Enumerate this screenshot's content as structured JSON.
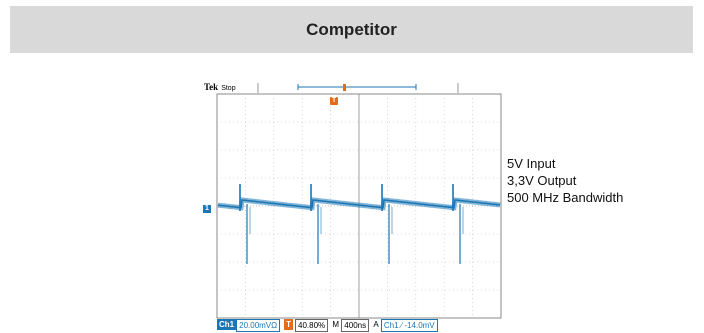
{
  "header": {
    "title": "Competitor"
  },
  "scope": {
    "brand": "Tek",
    "mode": "Stop",
    "trigger_marker": "T",
    "channel_marker": "1",
    "status": {
      "channel": "Ch1",
      "volts_div": "20.00mVΩ",
      "trigger_icon": "T",
      "trigger_pos": "40.80%",
      "time_prefix": "M",
      "time_div": "400ns",
      "acq_prefix": "A",
      "trig_source": "Ch1",
      "trig_slope": "∕",
      "trig_level": "-14.0mV"
    }
  },
  "notes": {
    "line1": "5V Input",
    "line2": "3,3V Output",
    "line3": "500 MHz Bandwidth"
  },
  "colors": {
    "trace": "#1b76b5",
    "trigger": "#e36c1b",
    "header_bg": "#d9d9d9"
  }
}
